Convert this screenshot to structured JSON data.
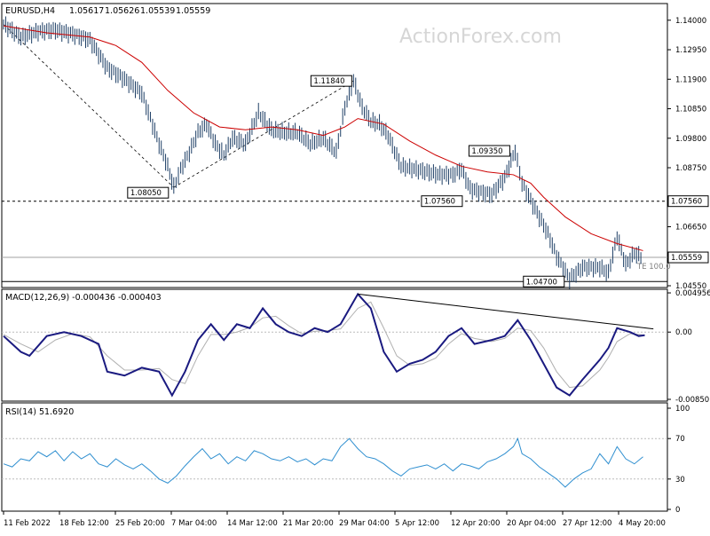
{
  "chart_data": [
    {
      "type": "candlestick",
      "symbol_timeframe": "EURUSD,H4",
      "ohlc": {
        "open": "1.05617",
        "high": "1.05626",
        "low": "1.05539",
        "close": "1.05559"
      },
      "watermark": "ActionForex.com",
      "y_ticks": [
        "1.14000",
        "1.12950",
        "1.11900",
        "1.10850",
        "1.09800",
        "1.08750",
        "1.06650",
        "1.04550"
      ],
      "ylim": [
        1.0455,
        1.1453
      ],
      "x_ticks": [
        "11 Feb 2022",
        "18 Feb 12:00",
        "25 Feb 20:00",
        "7 Mar 04:00",
        "14 Mar 12:00",
        "21 Mar 20:00",
        "29 Mar 04:00",
        "5 Apr 12:00",
        "12 Apr 20:00",
        "20 Apr 04:00",
        "27 Apr 12:00",
        "4 May 20:00"
      ],
      "close_path": [
        [
          0,
          1.1385
        ],
        [
          20,
          1.134
        ],
        [
          40,
          1.136
        ],
        [
          60,
          1.1365
        ],
        [
          80,
          1.135
        ],
        [
          100,
          1.133
        ],
        [
          120,
          1.123
        ],
        [
          140,
          1.119
        ],
        [
          160,
          1.114
        ],
        [
          170,
          1.105
        ],
        [
          180,
          1.096
        ],
        [
          190,
          1.088
        ],
        [
          197,
          1.0805
        ],
        [
          205,
          1.087
        ],
        [
          215,
          1.093
        ],
        [
          225,
          1.1
        ],
        [
          235,
          1.103
        ],
        [
          245,
          1.096
        ],
        [
          255,
          1.092
        ],
        [
          265,
          1.098
        ],
        [
          280,
          1.096
        ],
        [
          295,
          1.107
        ],
        [
          310,
          1.101
        ],
        [
          325,
          1.1
        ],
        [
          340,
          1.1
        ],
        [
          355,
          1.096
        ],
        [
          370,
          1.098
        ],
        [
          385,
          1.093
        ],
        [
          395,
          1.109
        ],
        [
          405,
          1.1184
        ],
        [
          415,
          1.109
        ],
        [
          425,
          1.104
        ],
        [
          435,
          1.103
        ],
        [
          445,
          1.099
        ],
        [
          460,
          1.088
        ],
        [
          475,
          1.087
        ],
        [
          490,
          1.086
        ],
        [
          505,
          1.085
        ],
        [
          520,
          1.085
        ],
        [
          530,
          1.087
        ],
        [
          540,
          1.08
        ],
        [
          550,
          1.079
        ],
        [
          565,
          1.078
        ],
        [
          580,
          1.084
        ],
        [
          592,
          1.0935
        ],
        [
          600,
          1.082
        ],
        [
          610,
          1.076
        ],
        [
          620,
          1.07
        ],
        [
          630,
          1.064
        ],
        [
          640,
          1.056
        ],
        [
          655,
          1.048
        ],
        [
          670,
          1.052
        ],
        [
          690,
          1.052
        ],
        [
          700,
          1.05
        ],
        [
          710,
          1.063
        ],
        [
          720,
          1.053
        ],
        [
          730,
          1.057
        ],
        [
          740,
          1.0555
        ]
      ],
      "ma_path": [
        [
          0,
          1.138
        ],
        [
          50,
          1.1355
        ],
        [
          100,
          1.134
        ],
        [
          130,
          1.131
        ],
        [
          160,
          1.125
        ],
        [
          190,
          1.115
        ],
        [
          220,
          1.107
        ],
        [
          250,
          1.102
        ],
        [
          280,
          1.101
        ],
        [
          310,
          1.102
        ],
        [
          340,
          1.101
        ],
        [
          370,
          1.099
        ],
        [
          395,
          1.102
        ],
        [
          410,
          1.105
        ],
        [
          440,
          1.103
        ],
        [
          470,
          1.097
        ],
        [
          500,
          1.092
        ],
        [
          530,
          1.088
        ],
        [
          560,
          1.086
        ],
        [
          590,
          1.085
        ],
        [
          610,
          1.082
        ],
        [
          625,
          1.077
        ],
        [
          650,
          1.07
        ],
        [
          680,
          1.064
        ],
        [
          710,
          1.0605
        ],
        [
          740,
          1.058
        ]
      ],
      "levels": [
        {
          "label": "1.07560",
          "value": 1.0756,
          "style": "dashed"
        },
        {
          "label": "1.05559",
          "value": 1.05559,
          "style": "solid-gray"
        },
        {
          "label": "",
          "value": 1.047,
          "style": "solid"
        }
      ],
      "annotations": [
        {
          "label": "1.08050",
          "x": 197,
          "value": 1.0805
        },
        {
          "label": "1.11840",
          "x": 405,
          "value": 1.1184
        },
        {
          "label": "1.09350",
          "x": 592,
          "value": 1.0935
        },
        {
          "label": "1.07560",
          "x": 535,
          "value": 1.0756
        },
        {
          "label": "1.04700",
          "x": 655,
          "value": 1.047
        }
      ],
      "small_label": "TE 100.0"
    },
    {
      "type": "line",
      "title": "MACD(12,26,9) -0.000436 -0.000403",
      "y_ticks": [
        "0.004956",
        "0.00",
        "-0.008501"
      ],
      "ylim": [
        -0.0085,
        0.00496
      ],
      "macd_path": [
        [
          0,
          -0.0005
        ],
        [
          20,
          -0.0025
        ],
        [
          30,
          -0.003
        ],
        [
          50,
          -0.0005
        ],
        [
          70,
          0.0
        ],
        [
          90,
          -0.0005
        ],
        [
          110,
          -0.0015
        ],
        [
          120,
          -0.005
        ],
        [
          140,
          -0.0055
        ],
        [
          160,
          -0.0045
        ],
        [
          180,
          -0.005
        ],
        [
          195,
          -0.008
        ],
        [
          210,
          -0.005
        ],
        [
          225,
          -0.001
        ],
        [
          240,
          0.001
        ],
        [
          255,
          -0.001
        ],
        [
          270,
          0.001
        ],
        [
          285,
          0.0005
        ],
        [
          300,
          0.003
        ],
        [
          315,
          0.001
        ],
        [
          330,
          0.0
        ],
        [
          345,
          -0.0005
        ],
        [
          360,
          0.0005
        ],
        [
          375,
          0.0
        ],
        [
          390,
          0.001
        ],
        [
          410,
          0.0048
        ],
        [
          425,
          0.003
        ],
        [
          440,
          -0.0025
        ],
        [
          455,
          -0.005
        ],
        [
          470,
          -0.004
        ],
        [
          485,
          -0.0035
        ],
        [
          500,
          -0.0025
        ],
        [
          515,
          -0.0005
        ],
        [
          530,
          0.0005
        ],
        [
          545,
          -0.0015
        ],
        [
          565,
          -0.001
        ],
        [
          580,
          -0.0005
        ],
        [
          595,
          0.0015
        ],
        [
          610,
          -0.001
        ],
        [
          625,
          -0.004
        ],
        [
          640,
          -0.007
        ],
        [
          655,
          -0.008
        ],
        [
          670,
          -0.006
        ],
        [
          690,
          -0.0035
        ],
        [
          700,
          -0.002
        ],
        [
          710,
          0.0005
        ],
        [
          725,
          0.0
        ],
        [
          735,
          -0.0005
        ],
        [
          742,
          -0.0004
        ]
      ],
      "signal_path": [
        [
          0,
          -0.0003
        ],
        [
          20,
          -0.0015
        ],
        [
          40,
          -0.0025
        ],
        [
          60,
          -0.001
        ],
        [
          80,
          -0.0002
        ],
        [
          100,
          -0.0006
        ],
        [
          120,
          -0.003
        ],
        [
          140,
          -0.0048
        ],
        [
          160,
          -0.0048
        ],
        [
          180,
          -0.0046
        ],
        [
          195,
          -0.006
        ],
        [
          210,
          -0.0065
        ],
        [
          225,
          -0.003
        ],
        [
          240,
          -0.0003
        ],
        [
          255,
          -0.0003
        ],
        [
          270,
          0.0
        ],
        [
          285,
          0.0006
        ],
        [
          300,
          0.0018
        ],
        [
          315,
          0.002
        ],
        [
          330,
          0.0008
        ],
        [
          345,
          -0.0002
        ],
        [
          360,
          0.0001
        ],
        [
          375,
          0.0002
        ],
        [
          390,
          0.0004
        ],
        [
          410,
          0.003
        ],
        [
          425,
          0.0038
        ],
        [
          440,
          0.0005
        ],
        [
          455,
          -0.003
        ],
        [
          470,
          -0.0042
        ],
        [
          485,
          -0.004
        ],
        [
          500,
          -0.0033
        ],
        [
          515,
          -0.0015
        ],
        [
          530,
          -0.0002
        ],
        [
          545,
          -0.0008
        ],
        [
          565,
          -0.0012
        ],
        [
          580,
          -0.0008
        ],
        [
          595,
          0.0005
        ],
        [
          610,
          0.0002
        ],
        [
          625,
          -0.002
        ],
        [
          640,
          -0.005
        ],
        [
          655,
          -0.007
        ],
        [
          670,
          -0.0068
        ],
        [
          690,
          -0.0048
        ],
        [
          700,
          -0.0032
        ],
        [
          710,
          -0.0012
        ],
        [
          725,
          -0.0002
        ],
        [
          735,
          -0.0003
        ],
        [
          742,
          -0.0004
        ]
      ],
      "trendline": [
        [
          410,
          0.0048
        ],
        [
          752,
          0.0004
        ]
      ]
    },
    {
      "type": "line",
      "title": "RSI(14) 51.6920",
      "y_ticks": [
        "100",
        "70",
        "30",
        "0"
      ],
      "ylim": [
        0,
        100
      ],
      "levels": [
        70,
        30
      ],
      "rsi_path": [
        [
          0,
          45
        ],
        [
          10,
          42
        ],
        [
          20,
          50
        ],
        [
          30,
          48
        ],
        [
          40,
          57
        ],
        [
          50,
          52
        ],
        [
          60,
          58
        ],
        [
          70,
          48
        ],
        [
          80,
          57
        ],
        [
          90,
          50
        ],
        [
          100,
          55
        ],
        [
          110,
          45
        ],
        [
          120,
          42
        ],
        [
          130,
          50
        ],
        [
          140,
          44
        ],
        [
          150,
          40
        ],
        [
          160,
          45
        ],
        [
          170,
          38
        ],
        [
          180,
          30
        ],
        [
          190,
          26
        ],
        [
          200,
          33
        ],
        [
          210,
          43
        ],
        [
          220,
          52
        ],
        [
          230,
          60
        ],
        [
          240,
          50
        ],
        [
          250,
          55
        ],
        [
          260,
          45
        ],
        [
          270,
          52
        ],
        [
          280,
          48
        ],
        [
          290,
          58
        ],
        [
          300,
          55
        ],
        [
          310,
          50
        ],
        [
          320,
          48
        ],
        [
          330,
          52
        ],
        [
          340,
          47
        ],
        [
          350,
          50
        ],
        [
          360,
          44
        ],
        [
          370,
          50
        ],
        [
          380,
          48
        ],
        [
          390,
          62
        ],
        [
          400,
          70
        ],
        [
          410,
          60
        ],
        [
          420,
          52
        ],
        [
          430,
          50
        ],
        [
          440,
          45
        ],
        [
          450,
          38
        ],
        [
          460,
          33
        ],
        [
          470,
          40
        ],
        [
          480,
          42
        ],
        [
          490,
          44
        ],
        [
          500,
          40
        ],
        [
          510,
          45
        ],
        [
          520,
          38
        ],
        [
          530,
          45
        ],
        [
          540,
          43
        ],
        [
          550,
          40
        ],
        [
          560,
          47
        ],
        [
          570,
          50
        ],
        [
          580,
          55
        ],
        [
          590,
          62
        ],
        [
          595,
          70
        ],
        [
          600,
          55
        ],
        [
          610,
          50
        ],
        [
          620,
          42
        ],
        [
          630,
          36
        ],
        [
          640,
          30
        ],
        [
          650,
          22
        ],
        [
          660,
          30
        ],
        [
          670,
          36
        ],
        [
          680,
          40
        ],
        [
          690,
          55
        ],
        [
          700,
          45
        ],
        [
          710,
          62
        ],
        [
          720,
          50
        ],
        [
          730,
          45
        ],
        [
          740,
          52
        ]
      ]
    }
  ]
}
